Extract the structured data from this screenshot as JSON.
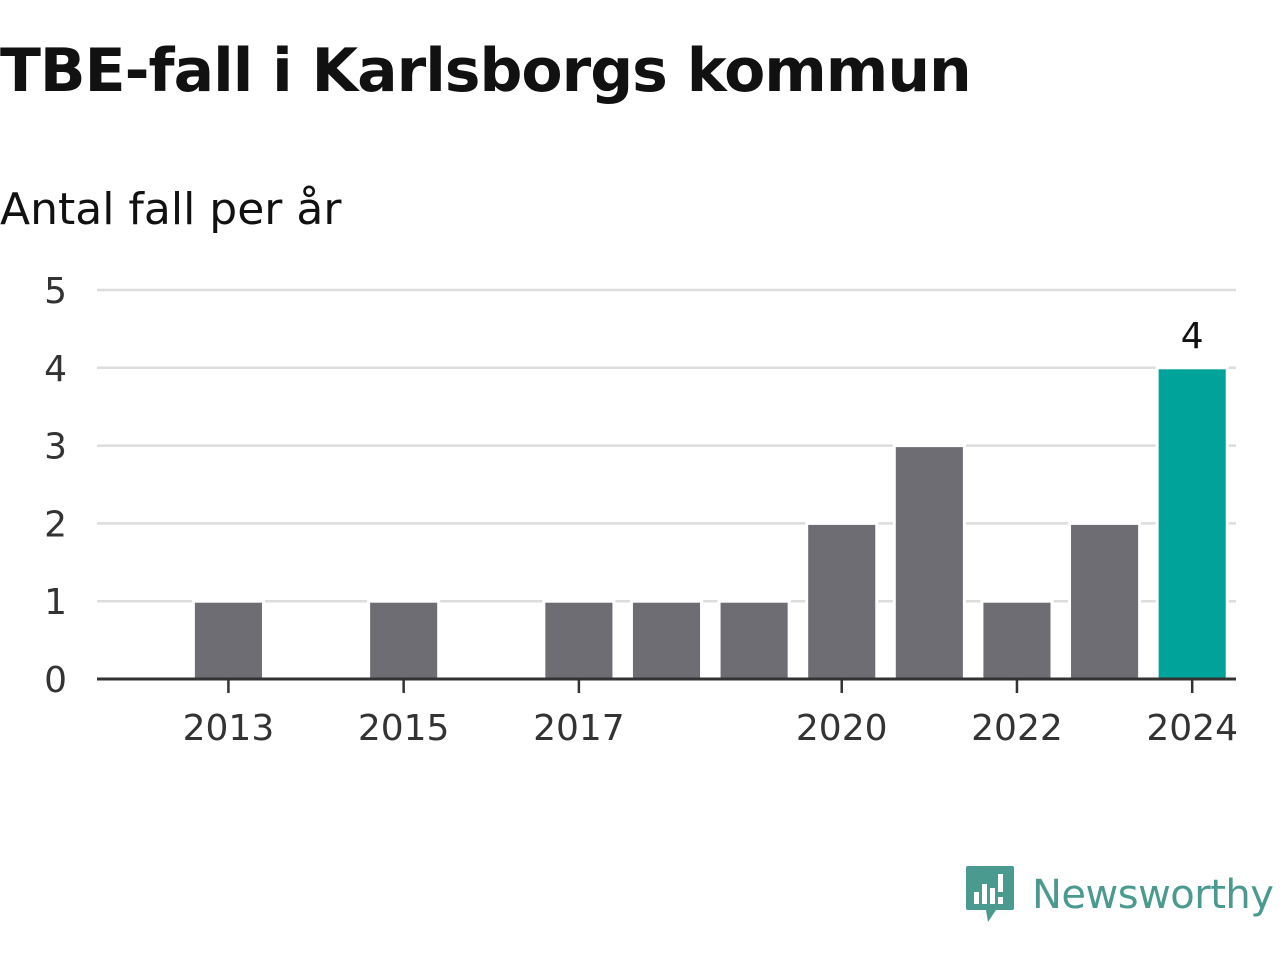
{
  "chart_data": {
    "type": "bar",
    "title": "TBE-fall i Karlsborgs kommun",
    "subtitle": "Antal fall per år",
    "xlabel": "",
    "ylabel": "",
    "categories": [
      "2012",
      "2013",
      "2014",
      "2015",
      "2016",
      "2017",
      "2018",
      "2019",
      "2020",
      "2021",
      "2022",
      "2023",
      "2024"
    ],
    "x_tick_labels": [
      "2013",
      "2015",
      "2017",
      "2020",
      "2022",
      "2024"
    ],
    "values": [
      0,
      1,
      0,
      1,
      0,
      1,
      1,
      1,
      2,
      3,
      1,
      2,
      4
    ],
    "ylim": [
      0,
      5
    ],
    "y_ticks": [
      0,
      1,
      2,
      3,
      4,
      5
    ],
    "grid": true,
    "legend": "none",
    "highlight": {
      "category": "2024",
      "label": "4"
    },
    "colors": {
      "bar": "#6e6d74",
      "highlight": "#00a39a",
      "grid": "#dddddd",
      "axis": "#333333"
    }
  },
  "branding": {
    "name": "Newsworthy",
    "logo_icon": "newsworthy-logo-icon",
    "color": "#4a9a90"
  }
}
